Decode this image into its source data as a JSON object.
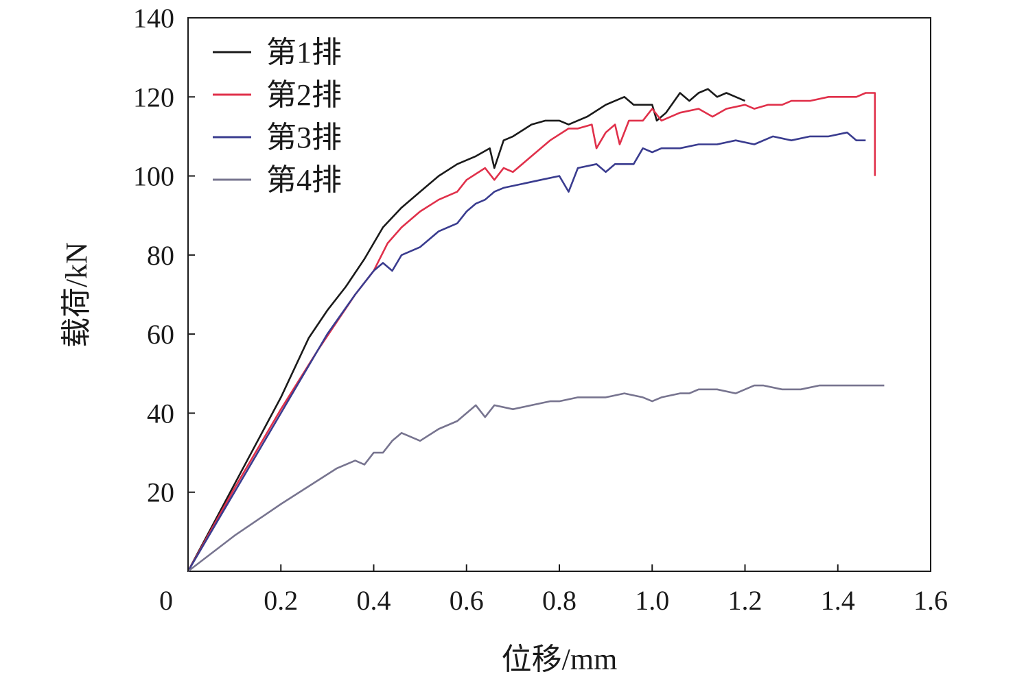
{
  "chart_data": {
    "type": "line",
    "title": "",
    "xlabel": "位移/mm",
    "ylabel": "载荷/kN",
    "xlim": [
      0,
      1.6
    ],
    "ylim": [
      0,
      140
    ],
    "xticks": [
      0,
      0.2,
      0.4,
      0.6,
      0.8,
      1.0,
      1.2,
      1.4,
      1.6
    ],
    "xtick_labels": [
      "0",
      "0.2",
      "0.4",
      "0.6",
      "0.8",
      "1.0",
      "1.2",
      "1.4",
      "1.6"
    ],
    "yticks": [
      20,
      40,
      60,
      80,
      100,
      120,
      140
    ],
    "ytick_labels": [
      "20",
      "40",
      "60",
      "80",
      "100",
      "120",
      "140"
    ],
    "grid": false,
    "legend_position": "top-left",
    "series": [
      {
        "name": "第1排",
        "color": "#1a1a1a",
        "x": [
          0,
          0.1,
          0.2,
          0.26,
          0.3,
          0.34,
          0.38,
          0.42,
          0.46,
          0.5,
          0.54,
          0.58,
          0.62,
          0.65,
          0.66,
          0.68,
          0.7,
          0.74,
          0.77,
          0.8,
          0.82,
          0.86,
          0.9,
          0.94,
          0.96,
          1.0,
          1.01,
          1.03,
          1.06,
          1.08,
          1.1,
          1.12,
          1.14,
          1.16,
          1.18,
          1.2
        ],
        "y": [
          0,
          22,
          44,
          59,
          66,
          72,
          79,
          87,
          92,
          96,
          100,
          103,
          105,
          107,
          102,
          109,
          110,
          113,
          114,
          114,
          113,
          115,
          118,
          120,
          118,
          118,
          114,
          116,
          121,
          119,
          121,
          122,
          120,
          121,
          120,
          119
        ]
      },
      {
        "name": "第2排",
        "color": "#e0304a",
        "x": [
          0,
          0.1,
          0.2,
          0.28,
          0.32,
          0.36,
          0.4,
          0.43,
          0.46,
          0.5,
          0.54,
          0.58,
          0.6,
          0.64,
          0.66,
          0.68,
          0.7,
          0.74,
          0.78,
          0.82,
          0.84,
          0.87,
          0.88,
          0.9,
          0.92,
          0.93,
          0.95,
          0.98,
          1.0,
          1.02,
          1.06,
          1.1,
          1.13,
          1.16,
          1.2,
          1.22,
          1.25,
          1.28,
          1.3,
          1.34,
          1.38,
          1.4,
          1.42,
          1.44,
          1.46,
          1.48,
          1.48
        ],
        "y": [
          0,
          21,
          41,
          56,
          63,
          70,
          76,
          83,
          87,
          91,
          94,
          96,
          99,
          102,
          99,
          102,
          101,
          105,
          109,
          112,
          112,
          113,
          107,
          111,
          113,
          108,
          114,
          114,
          117,
          114,
          116,
          117,
          115,
          117,
          118,
          117,
          118,
          118,
          119,
          119,
          120,
          120,
          120,
          120,
          121,
          121,
          100
        ]
      },
      {
        "name": "第3排",
        "color": "#3a3c8f",
        "x": [
          0,
          0.1,
          0.2,
          0.3,
          0.36,
          0.4,
          0.42,
          0.44,
          0.46,
          0.5,
          0.54,
          0.58,
          0.6,
          0.62,
          0.64,
          0.66,
          0.68,
          0.72,
          0.76,
          0.8,
          0.82,
          0.84,
          0.88,
          0.9,
          0.92,
          0.96,
          0.98,
          1.0,
          1.02,
          1.06,
          1.1,
          1.14,
          1.18,
          1.22,
          1.26,
          1.3,
          1.34,
          1.38,
          1.42,
          1.44,
          1.46
        ],
        "y": [
          0,
          20,
          40,
          60,
          70,
          76,
          78,
          76,
          80,
          82,
          86,
          88,
          91,
          93,
          94,
          96,
          97,
          98,
          99,
          100,
          96,
          102,
          103,
          101,
          103,
          103,
          107,
          106,
          107,
          107,
          108,
          108,
          109,
          108,
          110,
          109,
          110,
          110,
          111,
          109,
          109
        ]
      },
      {
        "name": "第4排",
        "color": "#77748f",
        "x": [
          0,
          0.1,
          0.2,
          0.28,
          0.32,
          0.36,
          0.38,
          0.4,
          0.42,
          0.44,
          0.46,
          0.5,
          0.54,
          0.58,
          0.62,
          0.64,
          0.66,
          0.7,
          0.74,
          0.78,
          0.8,
          0.84,
          0.88,
          0.9,
          0.94,
          0.98,
          1.0,
          1.02,
          1.06,
          1.08,
          1.1,
          1.14,
          1.18,
          1.22,
          1.24,
          1.28,
          1.32,
          1.36,
          1.4,
          1.44,
          1.48,
          1.5
        ],
        "y": [
          0,
          9,
          17,
          23,
          26,
          28,
          27,
          30,
          30,
          33,
          35,
          33,
          36,
          38,
          42,
          39,
          42,
          41,
          42,
          43,
          43,
          44,
          44,
          44,
          45,
          44,
          43,
          44,
          45,
          45,
          46,
          46,
          45,
          47,
          47,
          46,
          46,
          47,
          47,
          47,
          47,
          47
        ]
      }
    ]
  }
}
